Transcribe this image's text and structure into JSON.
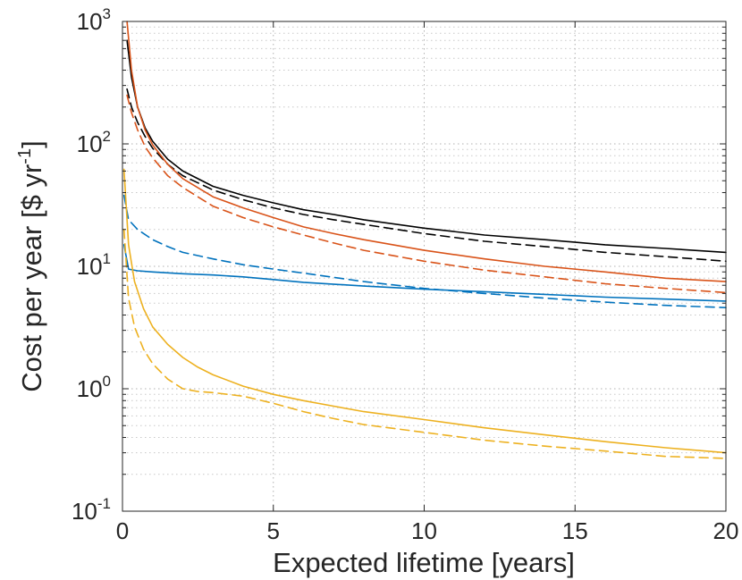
{
  "chart_data": {
    "type": "line",
    "xlabel": "Expected lifetime [years]",
    "ylabel": {
      "main": "Cost per year [$ yr",
      "sup": "-1",
      "tail": "]"
    },
    "xlim": [
      0,
      20
    ],
    "ylim": [
      0.1,
      1000
    ],
    "yscale": "log",
    "grid": "on (major and minor, dotted)",
    "xticks": [
      {
        "value": 0,
        "label": "0"
      },
      {
        "value": 5,
        "label": "5"
      },
      {
        "value": 10,
        "label": "10"
      },
      {
        "value": 15,
        "label": "15"
      },
      {
        "value": 20,
        "label": "20"
      }
    ],
    "yticks": [
      {
        "value": 0.1,
        "base": "10",
        "exp": "-1"
      },
      {
        "value": 1,
        "base": "10",
        "exp": "0"
      },
      {
        "value": 10,
        "base": "10",
        "exp": "1"
      },
      {
        "value": 100,
        "base": "10",
        "exp": "2"
      },
      {
        "value": 1000,
        "base": "10",
        "exp": "3"
      }
    ],
    "series": [
      {
        "color": "#000000",
        "style": "solid",
        "x": [
          0.15,
          0.3,
          0.5,
          0.75,
          1,
          1.5,
          2,
          3,
          4,
          5,
          6,
          7,
          8,
          10,
          12,
          14,
          16,
          18,
          20
        ],
        "y": [
          700,
          350,
          200,
          135,
          105,
          75,
          60,
          45,
          38,
          33,
          29,
          26.5,
          24,
          20.5,
          18,
          16.5,
          15,
          14,
          13
        ]
      },
      {
        "color": "#000000",
        "style": "dashed",
        "x": [
          0.15,
          0.3,
          0.5,
          0.75,
          1,
          1.5,
          2,
          3,
          4,
          5,
          6,
          7,
          8,
          10,
          12,
          14,
          16,
          18,
          20
        ],
        "y": [
          280,
          200,
          150,
          115,
          92,
          68,
          55,
          42,
          35,
          30,
          26.5,
          24,
          22,
          18.5,
          16,
          14.5,
          13,
          12,
          11
        ]
      },
      {
        "color": "#D95319",
        "style": "solid",
        "x": [
          0.15,
          0.3,
          0.5,
          0.75,
          1,
          1.5,
          2,
          3,
          4,
          5,
          6,
          7,
          8,
          10,
          12,
          14,
          16,
          18,
          20
        ],
        "y": [
          1000,
          400,
          200,
          130,
          98,
          68,
          52,
          37,
          30,
          25,
          21,
          18.5,
          16.5,
          13.5,
          11.5,
          10,
          9,
          8,
          7.5
        ]
      },
      {
        "color": "#D95319",
        "style": "dashed",
        "x": [
          0.15,
          0.3,
          0.5,
          0.75,
          1,
          1.5,
          2,
          3,
          4,
          5,
          6,
          7,
          8,
          10,
          12,
          14,
          16,
          18,
          20
        ],
        "y": [
          250,
          180,
          130,
          95,
          77,
          55,
          44,
          31,
          25,
          21,
          18,
          15.5,
          13.5,
          11,
          9.3,
          8.2,
          7.2,
          6.6,
          6.1
        ]
      },
      {
        "color": "#0072BD",
        "style": "solid",
        "x": [
          0.05,
          0.2,
          0.5,
          1,
          2,
          3,
          4,
          5,
          6,
          8,
          10,
          12,
          14,
          16,
          18,
          20
        ],
        "y": [
          15,
          9.5,
          9.2,
          9,
          8.7,
          8.5,
          8.2,
          7.8,
          7.4,
          6.9,
          6.5,
          6.2,
          5.9,
          5.6,
          5.4,
          5.2
        ]
      },
      {
        "color": "#0072BD",
        "style": "dashed",
        "x": [
          0.05,
          0.2,
          0.5,
          1,
          1.5,
          2,
          3,
          4,
          5,
          6,
          8,
          10,
          12,
          14,
          16,
          18,
          20
        ],
        "y": [
          38,
          24,
          20,
          16.5,
          14.5,
          13,
          11.5,
          10.3,
          9.5,
          8.8,
          7.5,
          6.6,
          6,
          5.5,
          5.1,
          4.8,
          4.6
        ]
      },
      {
        "color": "#EDB120",
        "style": "solid",
        "x": [
          0.05,
          0.2,
          0.4,
          0.7,
          1,
          1.5,
          2,
          2.5,
          3,
          4,
          5,
          6,
          7,
          8,
          10,
          12,
          14,
          16,
          18,
          20
        ],
        "y": [
          62,
          15,
          7.5,
          4.5,
          3.2,
          2.3,
          1.8,
          1.5,
          1.3,
          1.05,
          0.9,
          0.8,
          0.72,
          0.65,
          0.56,
          0.48,
          0.42,
          0.37,
          0.33,
          0.3
        ]
      },
      {
        "color": "#EDB120",
        "style": "dashed",
        "x": [
          0.05,
          0.2,
          0.4,
          0.7,
          1,
          1.5,
          2,
          2.5,
          3,
          3.5,
          4,
          5,
          6,
          7,
          8,
          10,
          12,
          14,
          16,
          18,
          20
        ],
        "y": [
          20,
          5.5,
          3.2,
          2.1,
          1.6,
          1.2,
          1.0,
          0.95,
          0.93,
          0.9,
          0.87,
          0.76,
          0.65,
          0.57,
          0.51,
          0.44,
          0.38,
          0.34,
          0.31,
          0.28,
          0.27
        ]
      }
    ]
  }
}
